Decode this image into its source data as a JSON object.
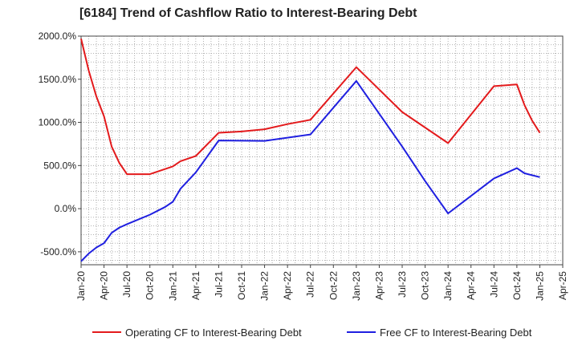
{
  "chart_data": {
    "type": "line",
    "title": "[6184]  Trend of Cashflow Ratio to Interest-Bearing Debt",
    "xlabel": "",
    "ylabel": "",
    "x_tick_labels": [
      "Jan-20",
      "Apr-20",
      "Jul-20",
      "Oct-20",
      "Jan-21",
      "Apr-21",
      "Jul-21",
      "Oct-21",
      "Jan-22",
      "Apr-22",
      "Jul-22",
      "Oct-22",
      "Jan-23",
      "Apr-23",
      "Jul-23",
      "Oct-23",
      "Jan-24",
      "Apr-24",
      "Jul-24",
      "Oct-24",
      "Jan-25",
      "Apr-25"
    ],
    "y_tick_labels": [
      "-500.0%",
      "0.0%",
      "500.0%",
      "1000.0%",
      "1500.0%",
      "2000.0%"
    ],
    "y_ticks": [
      -500,
      0,
      500,
      1000,
      1500,
      2000
    ],
    "ylim": [
      -650,
      2000
    ],
    "x_range": [
      "2020-01",
      "2025-04"
    ],
    "grid": true,
    "legend_position": "bottom",
    "series": [
      {
        "name": "Operating CF to Interest-Bearing Debt",
        "color": "#e31a1c",
        "points": [
          [
            "2020-01",
            1970
          ],
          [
            "2020-02",
            1600
          ],
          [
            "2020-03",
            1300
          ],
          [
            "2020-04",
            1070
          ],
          [
            "2020-05",
            720
          ],
          [
            "2020-06",
            530
          ],
          [
            "2020-07",
            400
          ],
          [
            "2020-10",
            400
          ],
          [
            "2021-01",
            490
          ],
          [
            "2021-02",
            550
          ],
          [
            "2021-04",
            610
          ],
          [
            "2021-07",
            880
          ],
          [
            "2021-10",
            895
          ],
          [
            "2022-01",
            920
          ],
          [
            "2022-04",
            980
          ],
          [
            "2022-07",
            1030
          ],
          [
            "2023-01",
            1640
          ],
          [
            "2023-07",
            1120
          ],
          [
            "2024-01",
            760
          ],
          [
            "2024-07",
            1420
          ],
          [
            "2024-10",
            1440
          ],
          [
            "2024-11",
            1200
          ],
          [
            "2024-12",
            1020
          ],
          [
            "2025-01",
            880
          ]
        ]
      },
      {
        "name": "Free CF to Interest-Bearing Debt",
        "color": "#1f1fe0",
        "points": [
          [
            "2020-01",
            -610
          ],
          [
            "2020-02",
            -520
          ],
          [
            "2020-03",
            -450
          ],
          [
            "2020-04",
            -400
          ],
          [
            "2020-05",
            -280
          ],
          [
            "2020-06",
            -220
          ],
          [
            "2020-07",
            -180
          ],
          [
            "2020-10",
            -70
          ],
          [
            "2020-12",
            20
          ],
          [
            "2021-01",
            80
          ],
          [
            "2021-02",
            230
          ],
          [
            "2021-04",
            420
          ],
          [
            "2021-07",
            790
          ],
          [
            "2022-01",
            785
          ],
          [
            "2022-07",
            860
          ],
          [
            "2023-01",
            1480
          ],
          [
            "2023-07",
            720
          ],
          [
            "2023-10",
            320
          ],
          [
            "2024-01",
            -55
          ],
          [
            "2024-07",
            350
          ],
          [
            "2024-10",
            470
          ],
          [
            "2024-11",
            410
          ],
          [
            "2025-01",
            365
          ]
        ]
      }
    ]
  }
}
